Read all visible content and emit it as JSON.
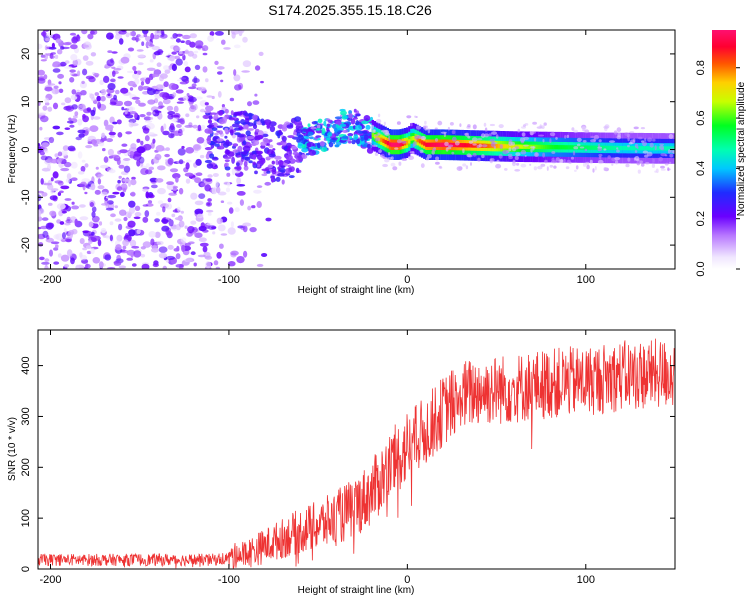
{
  "title": "S174.2025.355.15.18.C26",
  "chart_data": [
    {
      "type": "heatmap",
      "xlabel": "Height of straight line (km)",
      "ylabel": "Frequency (Hz)",
      "xlim": [
        -207,
        150
      ],
      "ylim": [
        -25,
        25
      ],
      "xticks": [
        {
          "value": -200,
          "label": "-200"
        },
        {
          "value": -100,
          "label": "-100"
        },
        {
          "value": 0,
          "label": "0"
        },
        {
          "value": 100,
          "label": "100"
        }
      ],
      "yticks": [
        {
          "value": -20,
          "label": "-20"
        },
        {
          "value": -10,
          "label": "-10"
        },
        {
          "value": 0,
          "label": "0"
        },
        {
          "value": 10,
          "label": "10"
        },
        {
          "value": 20,
          "label": "20"
        }
      ],
      "colorbar": {
        "label": "Normalized spectral amplitude",
        "range": [
          0,
          0.95
        ],
        "ticks": [
          {
            "value": 0.0,
            "label": "0.0"
          },
          {
            "value": 0.2,
            "label": "0.2"
          },
          {
            "value": 0.4,
            "label": "0.4"
          },
          {
            "value": 0.6,
            "label": "0.6"
          },
          {
            "value": 0.8,
            "label": "0.8"
          }
        ]
      },
      "ridge": {
        "x": [
          -110,
          -100,
          -90,
          -80,
          -70,
          -60,
          -50,
          -40,
          -35,
          -30,
          -25,
          -20,
          -15,
          -10,
          -5,
          0,
          2,
          5,
          10,
          20,
          40,
          60,
          80,
          100,
          120,
          150
        ],
        "freq": [
          2,
          2,
          2,
          0,
          -1,
          1,
          3,
          4,
          5,
          5,
          4,
          3,
          2,
          1,
          1,
          1.5,
          2.5,
          2,
          1,
          1,
          0.8,
          0.6,
          0.5,
          0.4,
          0.3,
          0.2
        ],
        "amplitude": [
          0.12,
          0.14,
          0.18,
          0.2,
          0.22,
          0.3,
          0.35,
          0.45,
          0.6,
          0.65,
          0.6,
          0.6,
          0.75,
          0.9,
          0.9,
          0.7,
          0.6,
          0.75,
          0.85,
          0.9,
          0.8,
          0.65,
          0.55,
          0.5,
          0.45,
          0.45
        ]
      }
    },
    {
      "type": "line",
      "xlabel": "Height of straight line (km)",
      "ylabel": "SNR (10 * v/v)",
      "xlim": [
        -207,
        150
      ],
      "ylim": [
        0,
        470
      ],
      "xticks": [
        {
          "value": -200,
          "label": "-200"
        },
        {
          "value": -100,
          "label": "-100"
        },
        {
          "value": 0,
          "label": "0"
        },
        {
          "value": 100,
          "label": "100"
        }
      ],
      "yticks": [
        {
          "value": 0,
          "label": "0"
        },
        {
          "value": 100,
          "label": "100"
        },
        {
          "value": 200,
          "label": "200"
        },
        {
          "value": 300,
          "label": "300"
        },
        {
          "value": 400,
          "label": "400"
        }
      ],
      "series": [
        {
          "name": "SNR",
          "color": "#ee3333",
          "trend_x": [
            -207,
            -110,
            -100,
            -90,
            -80,
            -70,
            -60,
            -50,
            -40,
            -30,
            -20,
            -10,
            0,
            10,
            20,
            30,
            40,
            60,
            80,
            100,
            120,
            150
          ],
          "trend_y": [
            18,
            18,
            22,
            30,
            45,
            60,
            75,
            85,
            100,
            120,
            150,
            200,
            240,
            270,
            310,
            340,
            350,
            355,
            365,
            370,
            380,
            385
          ]
        }
      ]
    }
  ]
}
